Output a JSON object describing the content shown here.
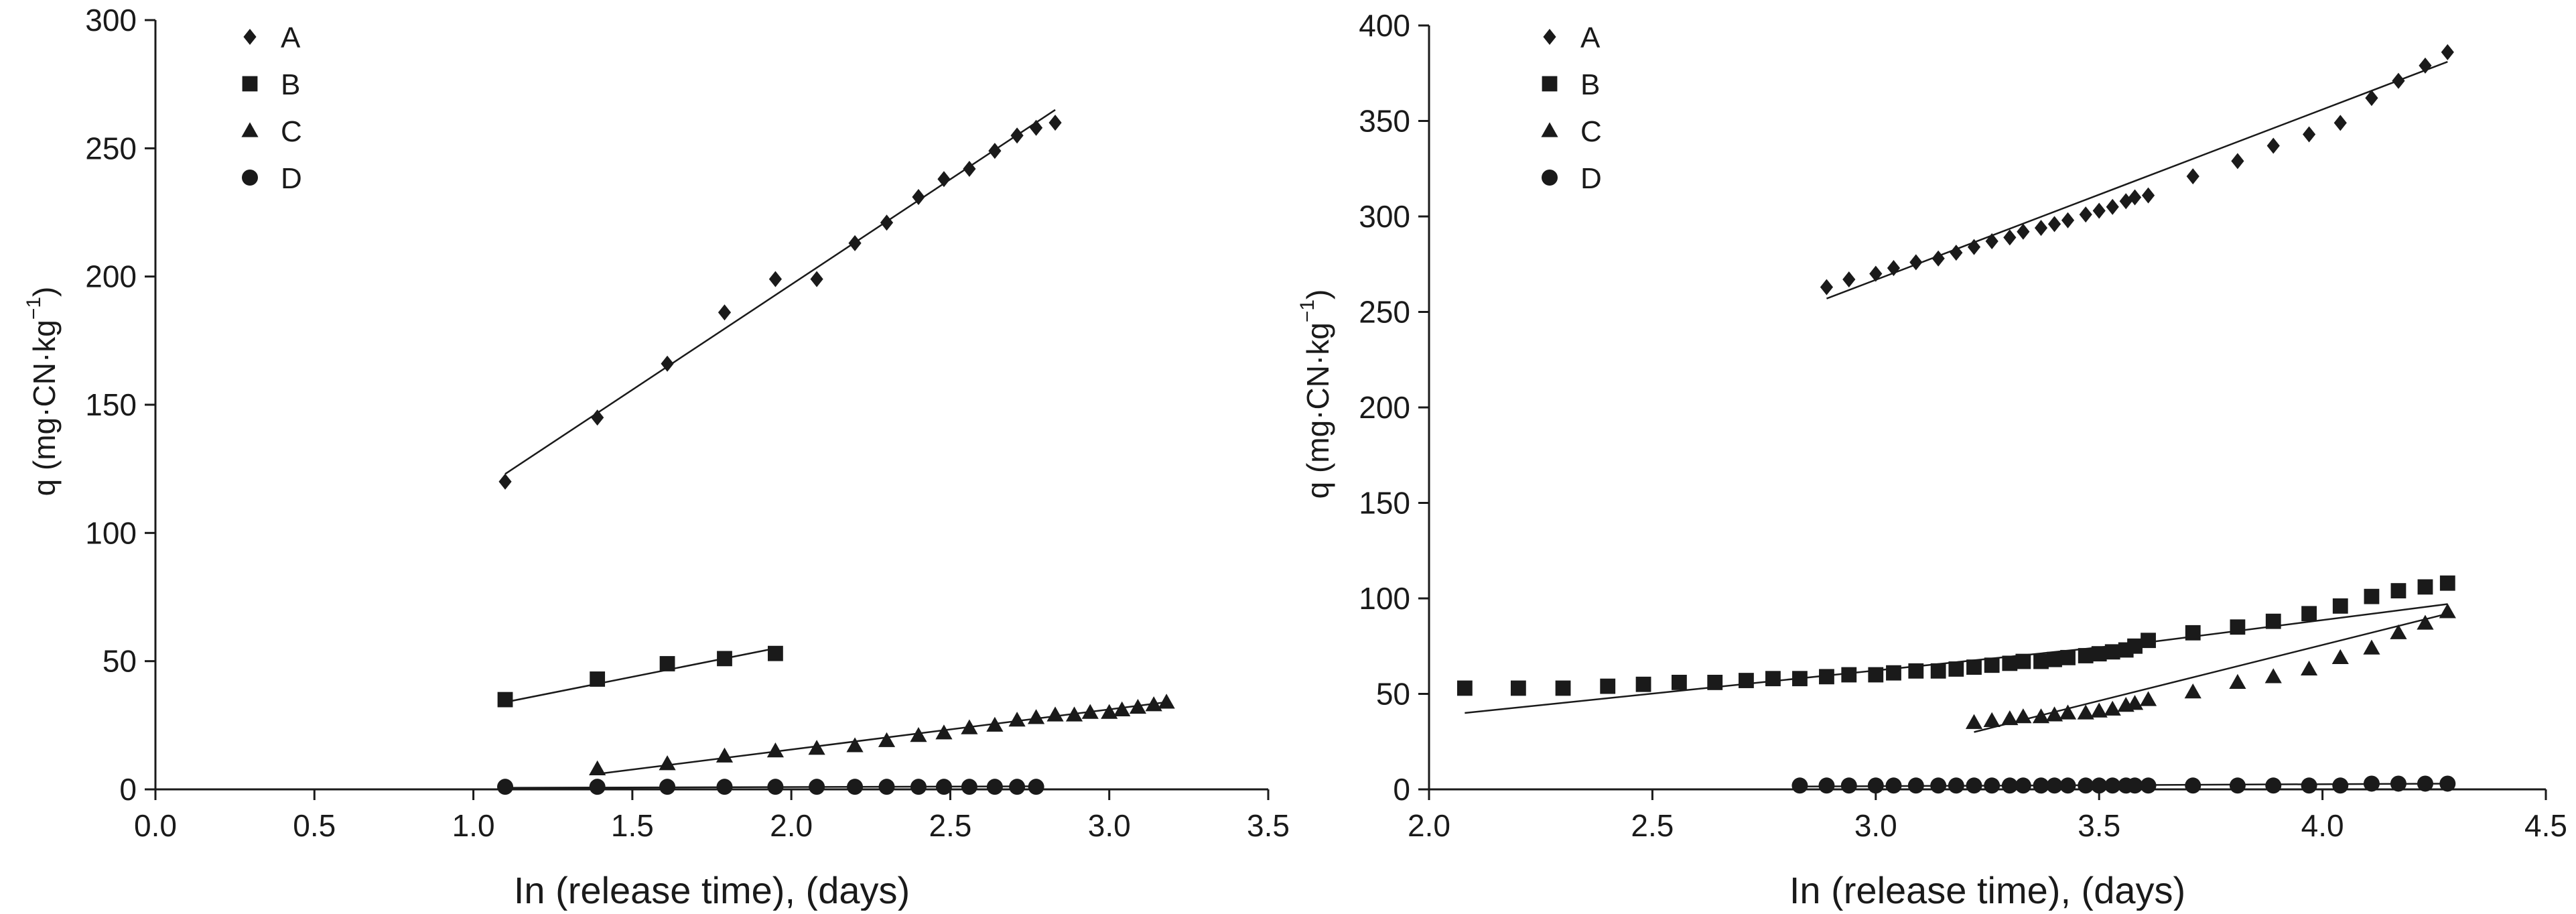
{
  "chart_data": [
    {
      "type": "scatter",
      "xlabel": "In (release time), (days)",
      "ylabel_main": "q (mg·CN·kg",
      "ylabel_sup": "−1",
      "ylabel_close": ")",
      "xlim": [
        0,
        3.5
      ],
      "ylim": [
        0,
        300
      ],
      "xticks": [
        "0.0",
        "0.5",
        "1.0",
        "1.5",
        "2.0",
        "2.5",
        "3.0",
        "3.5"
      ],
      "yticks": [
        "0",
        "50",
        "100",
        "150",
        "200",
        "250",
        "300"
      ],
      "grid": false,
      "legend_position": "top-left",
      "series": [
        {
          "name": "A",
          "marker": "diamond",
          "x": [
            1.1,
            1.39,
            1.61,
            1.79,
            1.95,
            2.08,
            2.2,
            2.3,
            2.4,
            2.48,
            2.56,
            2.64,
            2.71,
            2.77,
            2.83
          ],
          "y": [
            120,
            145,
            166,
            186,
            199,
            199,
            213,
            221,
            231,
            238,
            242,
            249,
            255,
            258,
            260
          ],
          "fit": {
            "x": [
              1.1,
              2.83
            ],
            "y": [
              123,
              265
            ]
          }
        },
        {
          "name": "B",
          "marker": "square",
          "x": [
            1.1,
            1.39,
            1.61,
            1.79,
            1.95
          ],
          "y": [
            35,
            43,
            49,
            51,
            53
          ],
          "fit": {
            "x": [
              1.1,
              1.95
            ],
            "y": [
              34,
              55
            ]
          }
        },
        {
          "name": "C",
          "marker": "triangle",
          "x": [
            1.39,
            1.61,
            1.79,
            1.95,
            2.08,
            2.2,
            2.3,
            2.4,
            2.48,
            2.56,
            2.64,
            2.71,
            2.77,
            2.83,
            2.89,
            2.94,
            3.0,
            3.04,
            3.09,
            3.14,
            3.18
          ],
          "y": [
            8,
            10,
            13,
            15,
            16,
            17,
            19,
            21,
            22,
            24,
            25,
            27,
            28,
            29,
            29,
            30,
            30,
            31,
            32,
            33,
            34
          ],
          "fit": {
            "x": [
              1.39,
              3.18
            ],
            "y": [
              6,
              34
            ]
          }
        },
        {
          "name": "D",
          "marker": "circle",
          "x": [
            1.1,
            1.39,
            1.61,
            1.79,
            1.95,
            2.08,
            2.2,
            2.3,
            2.4,
            2.48,
            2.56,
            2.64,
            2.71,
            2.77
          ],
          "y": [
            1,
            1,
            1,
            1,
            1,
            1,
            1,
            1,
            1,
            1,
            1,
            1,
            1,
            1
          ],
          "fit": {
            "x": [
              1.1,
              2.77
            ],
            "y": [
              0.6,
              1.2
            ]
          }
        }
      ]
    },
    {
      "type": "scatter",
      "xlabel": "In (release time), (days)",
      "ylabel_main": "q (mg·CN·kg",
      "ylabel_sup": "−1",
      "ylabel_close": ")",
      "xlim": [
        2.0,
        4.5
      ],
      "ylim": [
        0,
        400
      ],
      "xticks": [
        "2.0",
        "2.5",
        "3.0",
        "3.5",
        "4.0",
        "4.5"
      ],
      "yticks": [
        "0",
        "50",
        "100",
        "150",
        "200",
        "250",
        "300",
        "350",
        "400"
      ],
      "grid": false,
      "legend_position": "top-left",
      "series": [
        {
          "name": "A",
          "marker": "diamond",
          "x": [
            2.89,
            2.94,
            3.0,
            3.04,
            3.09,
            3.14,
            3.18,
            3.22,
            3.26,
            3.3,
            3.33,
            3.37,
            3.4,
            3.43,
            3.47,
            3.5,
            3.53,
            3.56,
            3.58,
            3.61,
            3.71,
            3.81,
            3.89,
            3.97,
            4.04,
            4.11,
            4.17,
            4.23,
            4.28
          ],
          "y": [
            263,
            267,
            270,
            273,
            276,
            278,
            281,
            284,
            287,
            289,
            292,
            294,
            296,
            298,
            301,
            303,
            305,
            308,
            310,
            311,
            321,
            329,
            337,
            343,
            349,
            362,
            371,
            379,
            386
          ],
          "fit": {
            "x": [
              2.89,
              4.28
            ],
            "y": [
              257,
              381
            ]
          }
        },
        {
          "name": "B",
          "marker": "square",
          "x": [
            2.08,
            2.2,
            2.3,
            2.4,
            2.48,
            2.56,
            2.64,
            2.71,
            2.77,
            2.83,
            2.89,
            2.94,
            3.0,
            3.04,
            3.09,
            3.14,
            3.18,
            3.22,
            3.26,
            3.3,
            3.33,
            3.37,
            3.4,
            3.43,
            3.47,
            3.5,
            3.53,
            3.56,
            3.58,
            3.61,
            3.71,
            3.81,
            3.89,
            3.97,
            4.04,
            4.11,
            4.17,
            4.23,
            4.28
          ],
          "y": [
            53,
            53,
            53,
            54,
            55,
            56,
            56,
            57,
            58,
            58,
            59,
            60,
            60,
            61,
            62,
            62,
            63,
            64,
            65,
            66,
            67,
            67,
            68,
            69,
            70,
            71,
            72,
            73,
            75,
            78,
            82,
            85,
            88,
            92,
            96,
            101,
            104,
            106,
            108
          ],
          "fit": {
            "x": [
              2.08,
              3.61,
              4.28
            ],
            "y": [
              40,
              77,
              97
            ]
          }
        },
        {
          "name": "C",
          "marker": "triangle",
          "x": [
            3.22,
            3.26,
            3.3,
            3.33,
            3.37,
            3.4,
            3.43,
            3.47,
            3.5,
            3.53,
            3.56,
            3.58,
            3.61,
            3.71,
            3.81,
            3.89,
            3.97,
            4.04,
            4.11,
            4.17,
            4.23,
            4.28
          ],
          "y": [
            35,
            36,
            37,
            38,
            38,
            39,
            40,
            40,
            41,
            42,
            44,
            45,
            47,
            51,
            56,
            59,
            63,
            69,
            74,
            82,
            87,
            93
          ],
          "fit": {
            "x": [
              3.22,
              4.28
            ],
            "y": [
              30,
              92
            ]
          }
        },
        {
          "name": "D",
          "marker": "circle",
          "x": [
            2.83,
            2.89,
            2.94,
            3.0,
            3.04,
            3.09,
            3.14,
            3.18,
            3.22,
            3.26,
            3.3,
            3.33,
            3.37,
            3.4,
            3.43,
            3.47,
            3.5,
            3.53,
            3.56,
            3.58,
            3.61,
            3.71,
            3.81,
            3.89,
            3.97,
            4.04,
            4.11,
            4.17,
            4.23,
            4.28
          ],
          "y": [
            2,
            2,
            2,
            2,
            2,
            2,
            2,
            2,
            2,
            2,
            2,
            2,
            2,
            2,
            2,
            2,
            2,
            2,
            2,
            2,
            2,
            2,
            2,
            2,
            2,
            2,
            3,
            3,
            3,
            3
          ],
          "fit": {
            "x": [
              2.83,
              4.28
            ],
            "y": [
              1.5,
              3
            ]
          }
        }
      ]
    }
  ]
}
